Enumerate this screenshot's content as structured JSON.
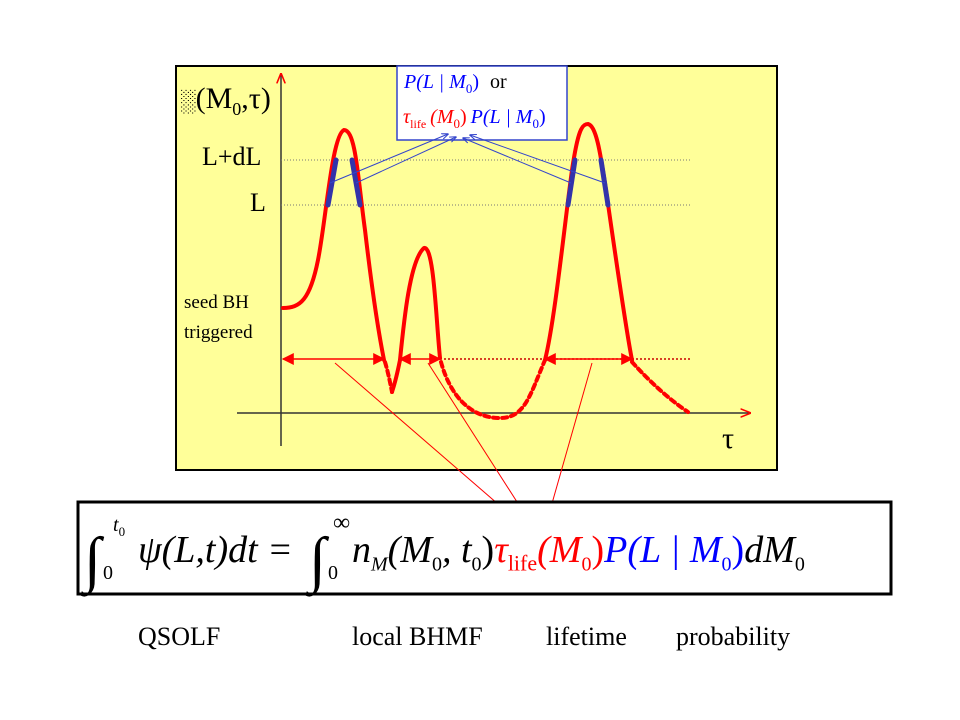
{
  "plot": {
    "background": "#FFFF99",
    "y_axis_label": {
      "prefix": "░",
      "main": "(M",
      "sub": "0",
      "rest": ",τ)"
    },
    "x_axis_label": "τ",
    "level_high": "L+dL",
    "level_low": "L",
    "seed_line1": "seed BH",
    "seed_line2": "triggered"
  },
  "inset": {
    "line1": {
      "p": "P",
      "body": "(L | M",
      "sub": "0",
      "close": ")",
      "or": "or"
    },
    "line2": {
      "tau": "τ",
      "life": "life",
      "mass": "(M",
      "sub": "0",
      "close": ")",
      "p": "P",
      "body": "(L | M",
      "sub2": "0",
      "close2": ")"
    }
  },
  "equation": {
    "upper_limit": "t",
    "upper_limit_sub": "0",
    "lower_limit": "0",
    "psi": "ψ",
    "psi_args": "(L,t)dt =",
    "upper_limit2": "∞",
    "lower_limit2": "0",
    "n": "n",
    "n_sub": "M",
    "n_args": "(M",
    "n_args_sub": "0",
    "n_args_rest": ", t",
    "n_args_sub2": "0",
    "n_close": ")",
    "tau": "τ",
    "tau_sub": "life",
    "tau_args": "(M",
    "tau_args_sub": "0",
    "tau_close": ")",
    "p": "P",
    "p_args": "(L | M",
    "p_sub": "0",
    "p_close": ")",
    "dm": "dM",
    "dm_sub": "0"
  },
  "labels": {
    "qsolf": "QSOLF",
    "bhmf": "local BHMF",
    "lifetime": "lifetime",
    "probability": "probability"
  },
  "colors": {
    "curve": "#FF0000",
    "highlight": "#3333AA",
    "arrow_blue": "#3344CC",
    "equation_red": "#FF0000",
    "equation_blue": "#0000FF"
  }
}
